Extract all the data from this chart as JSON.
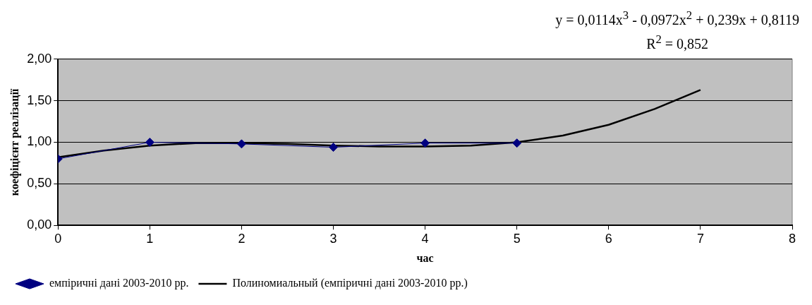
{
  "chart_data": {
    "type": "line",
    "annotations": [
      "y = 0,0114x$^{3}$ - 0,0972x$^{2}$ + 0,239x + 0,8119",
      "R$^{2}$ = 0,852"
    ],
    "xlabel": "час",
    "ylabel": "коефіцієнт реалізації",
    "series": [
      {
        "name": "емпіричні дані 2003-2010 рр.",
        "color": "#000080",
        "marker": "diamond",
        "x": [
          0,
          1,
          2,
          3,
          4,
          5
        ],
        "values": [
          0.8,
          1.0,
          0.98,
          0.94,
          0.99,
          0.99
        ]
      },
      {
        "name": "Полиномиальный (емпіричні дані 2003-2010 рр.)",
        "color": "#000000",
        "marker": "none",
        "x": [
          0,
          0.5,
          1,
          1.5,
          2,
          2.5,
          3,
          3.5,
          4,
          4.5,
          5,
          5.5,
          6,
          6.5,
          7
        ],
        "values": [
          0.82,
          0.9,
          0.96,
          0.99,
          0.99,
          0.98,
          0.96,
          0.95,
          0.95,
          0.96,
          1.0,
          1.08,
          1.21,
          1.4,
          1.63
        ]
      }
    ],
    "xlim": [
      0,
      8
    ],
    "xticks": [
      0,
      1,
      2,
      3,
      4,
      5,
      6,
      7,
      8
    ],
    "ylim": [
      0,
      2
    ],
    "yticks": [
      {
        "value": 0,
        "label": "0,00"
      },
      {
        "value": 0.5,
        "label": "0,50"
      },
      {
        "value": 1,
        "label": "1,00"
      },
      {
        "value": 1.5,
        "label": "1,50"
      },
      {
        "value": 2,
        "label": "2,00"
      }
    ],
    "grid": "y",
    "legend": "bottom",
    "line_style": "solid"
  }
}
